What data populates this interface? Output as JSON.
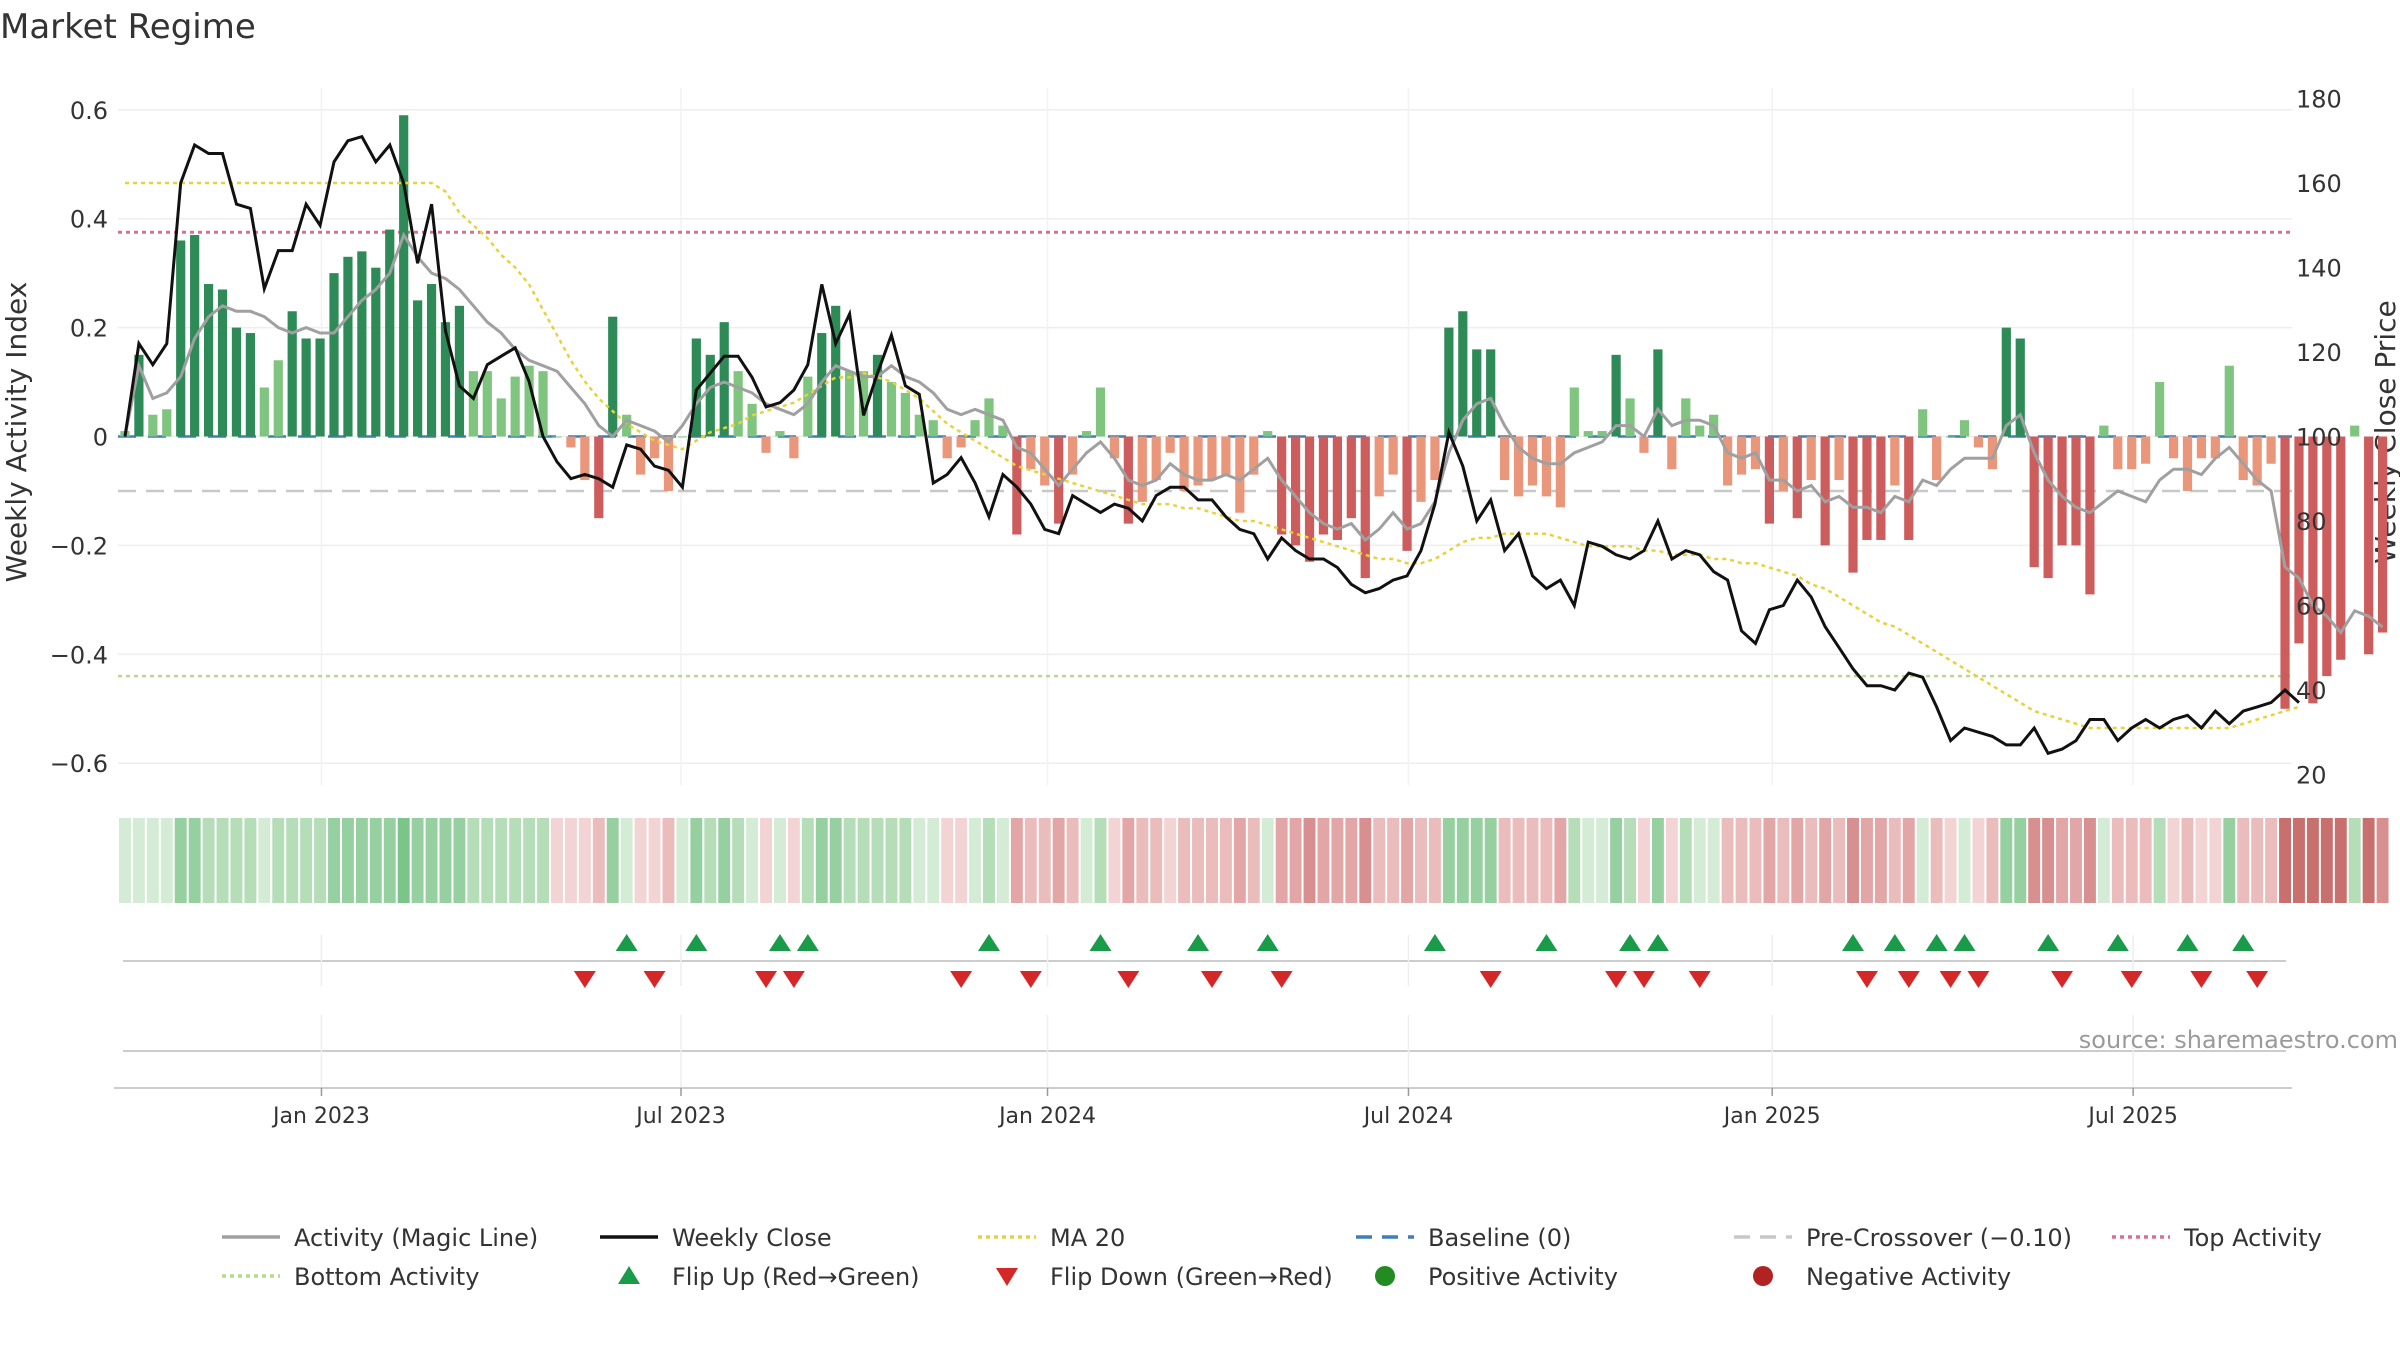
{
  "chart_data": {
    "type": "bar+line",
    "title": "Market Regime",
    "ylabel": "Weekly Activity Index",
    "y2label": "Weekly Close Price",
    "ylim": [
      -0.64,
      0.64
    ],
    "y2lim": [
      17.5,
      182.5
    ],
    "y_ticks": [
      -0.6,
      -0.4,
      -0.2,
      0,
      0.2,
      0.4,
      0.6
    ],
    "y_tick_labels": [
      "−0.6",
      "−0.4",
      "−0.2",
      "0",
      "0.2",
      "0.4",
      "0.6"
    ],
    "y2_ticks": [
      20,
      40,
      60,
      80,
      100,
      120,
      140,
      160,
      180
    ],
    "y2_tick_labels": [
      "20",
      "40",
      "60",
      "80",
      "100",
      "120",
      "140",
      "160",
      "180"
    ],
    "x_range_weeks": [
      0,
      156
    ],
    "x_ticks": [
      {
        "week": 14.6,
        "label": "Jan 2023"
      },
      {
        "week": 40.4,
        "label": "Jul 2023"
      },
      {
        "week": 66.7,
        "label": "Jan 2024"
      },
      {
        "week": 92.6,
        "label": "Jul 2024"
      },
      {
        "week": 118.7,
        "label": "Jan 2025"
      },
      {
        "week": 144.6,
        "label": "Jul 2025"
      }
    ],
    "top_activity": 0.375,
    "bottom_activity": -0.44,
    "pre_crossover": -0.1,
    "baseline": 0,
    "activity": [
      0.01,
      0.15,
      0.04,
      0.05,
      0.36,
      0.37,
      0.28,
      0.27,
      0.2,
      0.19,
      0.09,
      0.14,
      0.23,
      0.18,
      0.18,
      0.3,
      0.33,
      0.34,
      0.31,
      0.38,
      0.59,
      0.25,
      0.28,
      0.21,
      0.24,
      0.12,
      0.12,
      0.07,
      0.11,
      0.13,
      0.12,
      0.0,
      -0.02,
      -0.08,
      -0.15,
      0.22,
      0.04,
      -0.07,
      -0.04,
      -0.1,
      0.0,
      0.18,
      0.15,
      0.21,
      0.12,
      0.06,
      -0.03,
      0.01,
      -0.04,
      0.11,
      0.19,
      0.24,
      0.12,
      0.12,
      0.15,
      0.1,
      0.08,
      0.04,
      0.03,
      -0.04,
      -0.02,
      0.03,
      0.07,
      0.02,
      -0.18,
      -0.06,
      -0.09,
      -0.16,
      -0.07,
      0.01,
      0.09,
      -0.04,
      -0.16,
      -0.12,
      -0.08,
      -0.03,
      -0.1,
      -0.09,
      -0.08,
      -0.07,
      -0.14,
      -0.07,
      0.01,
      -0.18,
      -0.2,
      -0.23,
      -0.18,
      -0.19,
      -0.15,
      -0.26,
      -0.11,
      -0.07,
      -0.21,
      -0.12,
      -0.08,
      0.2,
      0.23,
      0.16,
      0.16,
      -0.08,
      -0.11,
      -0.09,
      -0.11,
      -0.13,
      0.09,
      0.01,
      0.01,
      0.15,
      0.07,
      -0.03,
      0.16,
      -0.06,
      0.07,
      0.02,
      0.04,
      -0.09,
      -0.07,
      -0.06,
      -0.16,
      -0.1,
      -0.15,
      -0.08,
      -0.2,
      -0.08,
      -0.25,
      -0.19,
      -0.19,
      -0.09,
      -0.19,
      0.05,
      -0.08,
      0.0,
      0.03,
      -0.02,
      -0.06,
      0.2,
      0.18,
      -0.24,
      -0.26,
      -0.2,
      -0.2,
      -0.29,
      0.02,
      -0.06,
      -0.06,
      -0.05,
      0.1,
      -0.04,
      -0.1,
      -0.04,
      -0.04,
      0.13,
      -0.08,
      -0.09,
      -0.05,
      -0.5,
      -0.38,
      -0.49,
      -0.44,
      -0.41,
      0.02,
      -0.4,
      -0.36
    ],
    "magic_line": [
      0.0,
      0.13,
      0.07,
      0.08,
      0.11,
      0.18,
      0.22,
      0.24,
      0.23,
      0.23,
      0.22,
      0.2,
      0.19,
      0.2,
      0.19,
      0.19,
      0.22,
      0.25,
      0.27,
      0.3,
      0.37,
      0.33,
      0.3,
      0.29,
      0.27,
      0.24,
      0.21,
      0.19,
      0.16,
      0.14,
      0.13,
      0.12,
      0.09,
      0.06,
      0.02,
      0.0,
      0.03,
      0.02,
      0.01,
      -0.01,
      0.02,
      0.06,
      0.09,
      0.1,
      0.09,
      0.08,
      0.06,
      0.05,
      0.04,
      0.06,
      0.1,
      0.13,
      0.12,
      0.11,
      0.11,
      0.13,
      0.11,
      0.1,
      0.08,
      0.05,
      0.04,
      0.05,
      0.04,
      0.03,
      -0.02,
      -0.03,
      -0.06,
      -0.09,
      -0.06,
      -0.03,
      -0.01,
      -0.04,
      -0.08,
      -0.09,
      -0.08,
      -0.05,
      -0.07,
      -0.08,
      -0.08,
      -0.07,
      -0.08,
      -0.06,
      -0.04,
      -0.08,
      -0.11,
      -0.14,
      -0.16,
      -0.17,
      -0.16,
      -0.19,
      -0.17,
      -0.14,
      -0.17,
      -0.16,
      -0.12,
      -0.03,
      0.03,
      0.06,
      0.07,
      0.02,
      -0.02,
      -0.04,
      -0.05,
      -0.05,
      -0.03,
      -0.02,
      -0.01,
      0.02,
      0.02,
      0.0,
      0.05,
      0.02,
      0.03,
      0.03,
      0.02,
      -0.03,
      -0.04,
      -0.03,
      -0.08,
      -0.08,
      -0.1,
      -0.09,
      -0.12,
      -0.11,
      -0.13,
      -0.13,
      -0.14,
      -0.11,
      -0.12,
      -0.08,
      -0.09,
      -0.06,
      -0.04,
      -0.04,
      -0.04,
      0.02,
      0.04,
      -0.03,
      -0.08,
      -0.11,
      -0.13,
      -0.14,
      -0.12,
      -0.1,
      -0.11,
      -0.12,
      -0.08,
      -0.06,
      -0.06,
      -0.07,
      -0.04,
      -0.02,
      -0.05,
      -0.08,
      -0.1,
      -0.24,
      -0.26,
      -0.31,
      -0.33,
      -0.36,
      -0.32,
      -0.33,
      -0.35
    ],
    "weekly_close": [
      100,
      122,
      117,
      122,
      160,
      169,
      167,
      167,
      155,
      154,
      135,
      144,
      144,
      155,
      150,
      165,
      170,
      171,
      165,
      169,
      160,
      141,
      155,
      125,
      112,
      109,
      117,
      119,
      121,
      113,
      100,
      94,
      90,
      91,
      90,
      88,
      98,
      97,
      93,
      92,
      88,
      111,
      115,
      119,
      119,
      114,
      107,
      108,
      111,
      117,
      136,
      122,
      129,
      105,
      115,
      124,
      112,
      110,
      89,
      91,
      95,
      89,
      81,
      91,
      88,
      84,
      78,
      77,
      86,
      84,
      82,
      84,
      83,
      80,
      86,
      88,
      88,
      85,
      85,
      81,
      78,
      77,
      71,
      76,
      73,
      71,
      71,
      69,
      65,
      63,
      64,
      66,
      67,
      73,
      84,
      101,
      93,
      80,
      85,
      73,
      77,
      67,
      64,
      66,
      60,
      75,
      74,
      72,
      71,
      73,
      80,
      71,
      73,
      72,
      68,
      66,
      54,
      51,
      59,
      60,
      66,
      62,
      55,
      50,
      45,
      41,
      41,
      40,
      44,
      43,
      36,
      28,
      31,
      30,
      29,
      27,
      27,
      31,
      25,
      26,
      28,
      33,
      33,
      28,
      31,
      33,
      31,
      33,
      34,
      31,
      35,
      32,
      35,
      36,
      37,
      40,
      37
    ],
    "ma20": [
      160,
      160,
      160,
      160,
      160,
      160,
      160,
      160,
      160,
      160,
      160,
      160,
      160,
      160,
      160,
      160,
      160,
      160,
      160,
      160,
      160,
      160,
      160,
      158,
      153,
      150,
      147,
      143,
      140,
      136,
      130,
      124,
      118,
      113,
      109,
      106,
      103,
      101,
      99,
      98,
      97,
      99,
      101,
      102,
      103,
      105,
      106,
      107,
      108,
      110,
      112,
      114,
      114,
      115,
      114,
      113,
      111,
      109,
      106,
      103,
      101,
      99,
      97,
      95,
      93,
      92,
      91,
      90,
      89,
      88,
      87,
      86,
      85,
      84,
      84,
      84,
      83,
      83,
      82,
      81,
      80,
      80,
      79,
      78,
      77,
      76,
      75,
      74,
      73,
      72,
      71,
      71,
      70,
      70,
      71,
      73,
      75,
      76,
      76,
      77,
      77,
      77,
      77,
      76,
      75,
      74,
      74,
      74,
      74,
      73,
      73,
      72,
      72,
      72,
      71,
      71,
      70,
      70,
      69,
      68,
      67,
      65,
      64,
      62,
      60,
      58,
      56,
      55,
      53,
      51,
      49,
      47,
      45,
      43,
      41,
      39,
      37,
      35,
      34,
      33,
      32,
      31,
      31,
      31,
      31,
      31,
      31,
      31,
      31,
      31,
      31,
      31,
      32,
      33,
      34,
      35,
      36
    ],
    "regime_strength": [
      1,
      1,
      1,
      1,
      3,
      3,
      2,
      2,
      2,
      2,
      1,
      2,
      2,
      2,
      2,
      3,
      3,
      3,
      3,
      3,
      4,
      3,
      3,
      3,
      3,
      2,
      2,
      2,
      2,
      2,
      2,
      -1,
      -1,
      -1,
      -2,
      3,
      1,
      -1,
      -1,
      -2,
      1,
      3,
      2,
      3,
      2,
      1,
      -1,
      1,
      -1,
      2,
      3,
      3,
      2,
      2,
      2,
      2,
      2,
      1,
      1,
      -1,
      -1,
      1,
      2,
      1,
      -3,
      -2,
      -2,
      -3,
      -2,
      1,
      2,
      -1,
      -3,
      -2,
      -2,
      -1,
      -2,
      -2,
      -2,
      -2,
      -3,
      -2,
      1,
      -3,
      -3,
      -4,
      -3,
      -3,
      -3,
      -4,
      -2,
      -2,
      -3,
      -2,
      -2,
      3,
      3,
      3,
      3,
      -2,
      -2,
      -2,
      -2,
      -3,
      2,
      1,
      1,
      3,
      2,
      -1,
      3,
      -1,
      2,
      1,
      1,
      -2,
      -2,
      -2,
      -3,
      -2,
      -3,
      -2,
      -3,
      -2,
      -4,
      -3,
      -3,
      -2,
      -3,
      1,
      -2,
      -1,
      1,
      -1,
      -2,
      3,
      3,
      -4,
      -4,
      -3,
      -3,
      -4,
      1,
      -2,
      -2,
      -2,
      2,
      -1,
      -2,
      -1,
      -1,
      3,
      -2,
      -2,
      -2,
      -5,
      -5,
      -5,
      -5,
      -5,
      2,
      -5,
      -4
    ],
    "flip_up_weeks": [
      36,
      41,
      47,
      49,
      62,
      70,
      77,
      82,
      94,
      102,
      108,
      110,
      124,
      127,
      130,
      132,
      138,
      143,
      148,
      152
    ],
    "flip_down_weeks": [
      33,
      38,
      46,
      48,
      60,
      65,
      72,
      78,
      83,
      98,
      107,
      109,
      113,
      125,
      128,
      131,
      133,
      139,
      144,
      149,
      153
    ],
    "legend": [
      {
        "label": "Activity (Magic Line)",
        "marker": "line",
        "color": "#a0a0a0",
        "dash": "solid"
      },
      {
        "label": "Weekly Close",
        "marker": "line",
        "color": "#111111",
        "dash": "solid"
      },
      {
        "label": "MA 20",
        "marker": "line",
        "color": "#e8d23a",
        "dash": "dotted"
      },
      {
        "label": "Baseline (0)",
        "marker": "line",
        "color": "#3f7fb5",
        "dash": "dashed"
      },
      {
        "label": "Pre-Crossover (−0.10)",
        "marker": "line",
        "color": "#c8c8c8",
        "dash": "dashed"
      },
      {
        "label": "Top Activity",
        "marker": "line",
        "color": "#d9708f",
        "dash": "dotted"
      },
      {
        "label": "Bottom Activity",
        "marker": "line",
        "color": "#b5dc85",
        "dash": "dotted"
      },
      {
        "label": "Flip Up (Red→Green)",
        "marker": "triangle-up",
        "color": "#1a9b4a"
      },
      {
        "label": "Flip Down (Green→Red)",
        "marker": "triangle-down",
        "color": "#d62728"
      },
      {
        "label": "Positive Activity",
        "marker": "circle",
        "color": "#228b22"
      },
      {
        "label": "Negative Activity",
        "marker": "circle",
        "color": "#b22222"
      }
    ],
    "source": "source: sharemaestro.com",
    "colors": {
      "bar_pos_strong": "#2e8b57",
      "bar_pos_light": "#7fc47f",
      "bar_neg_strong": "#cd5c5c",
      "bar_neg_light": "#e9967a",
      "magic_line": "#a0a0a0",
      "close": "#111111",
      "ma20": "#e8d23a",
      "baseline": "#3f7fb5",
      "pre_crossover": "#c8c8c8",
      "top_activity": "#d9708f",
      "bottom_activity": "#b5dc85",
      "flip_up": "#1a9b4a",
      "flip_down": "#d62728"
    }
  }
}
